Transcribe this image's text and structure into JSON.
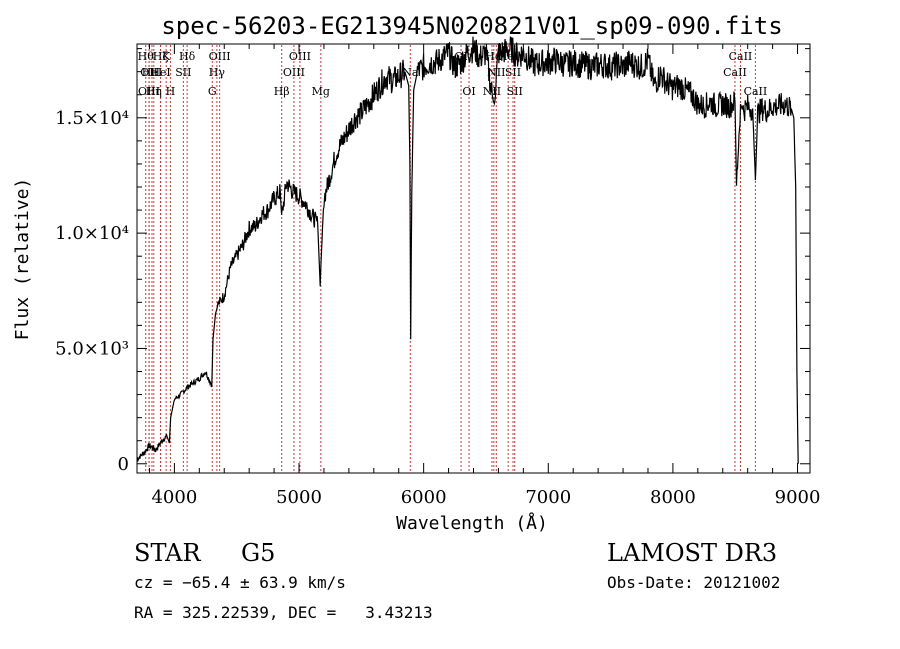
{
  "chart_data": {
    "type": "line",
    "title": "spec-56203-EG213945N020821V01_sp09-090.fits",
    "xlabel": "Wavelength (Å)",
    "ylabel": "Flux (relative)",
    "xlim": [
      3700,
      9100
    ],
    "ylim": [
      -400,
      18200
    ],
    "grid": false,
    "x_ticks": [
      {
        "value": 4000,
        "label": "4000"
      },
      {
        "value": 5000,
        "label": "5000"
      },
      {
        "value": 6000,
        "label": "6000"
      },
      {
        "value": 7000,
        "label": "7000"
      },
      {
        "value": 8000,
        "label": "8000"
      },
      {
        "value": 9000,
        "label": "9000"
      }
    ],
    "y_ticks": [
      {
        "value": 0,
        "label": "0"
      },
      {
        "value": 5000,
        "label": "5.0×10³"
      },
      {
        "value": 10000,
        "label": "1.0×10⁴"
      },
      {
        "value": 15000,
        "label": "1.5×10⁴"
      }
    ],
    "series": [
      {
        "name": "spectrum",
        "x": [
          3700,
          3760,
          3800,
          3850,
          3900,
          3940,
          3960,
          3970,
          4000,
          4050,
          4100,
          4150,
          4200,
          4250,
          4300,
          4310,
          4330,
          4350,
          4400,
          4450,
          4500,
          4550,
          4600,
          4650,
          4700,
          4750,
          4800,
          4850,
          4860,
          4900,
          4950,
          5000,
          5050,
          5100,
          5150,
          5170,
          5180,
          5200,
          5250,
          5300,
          5350,
          5400,
          5450,
          5500,
          5550,
          5600,
          5650,
          5700,
          5750,
          5800,
          5850,
          5880,
          5890,
          5896,
          5905,
          5920,
          5950,
          6000,
          6050,
          6100,
          6150,
          6200,
          6250,
          6300,
          6350,
          6400,
          6450,
          6500,
          6550,
          6563,
          6600,
          6650,
          6700,
          6750,
          6800,
          6850,
          6900,
          6950,
          7000,
          7050,
          7100,
          7150,
          7200,
          7250,
          7300,
          7350,
          7400,
          7450,
          7500,
          7550,
          7600,
          7650,
          7700,
          7750,
          7800,
          7850,
          7900,
          7950,
          8000,
          8050,
          8100,
          8150,
          8200,
          8250,
          8300,
          8350,
          8400,
          8450,
          8498,
          8510,
          8542,
          8560,
          8600,
          8640,
          8662,
          8680,
          8720,
          8760,
          8800,
          8850,
          8900,
          8950,
          8970,
          8985,
          8995,
          9005
        ],
        "y": [
          200,
          500,
          800,
          600,
          1000,
          1200,
          900,
          2000,
          2800,
          3000,
          3300,
          3500,
          3700,
          4000,
          3400,
          5400,
          6500,
          6900,
          7300,
          8500,
          9000,
          9500,
          10200,
          10300,
          10800,
          11000,
          11500,
          11800,
          10700,
          12200,
          11800,
          11600,
          11300,
          10800,
          10400,
          7700,
          9200,
          11500,
          12500,
          13500,
          14000,
          14500,
          15000,
          15200,
          15600,
          16000,
          16400,
          16800,
          16600,
          16800,
          17000,
          16400,
          13000,
          5400,
          11800,
          16200,
          17000,
          17200,
          17400,
          17400,
          17600,
          17800,
          17200,
          17400,
          17800,
          18000,
          17600,
          17800,
          16000,
          15600,
          17800,
          17900,
          18000,
          17700,
          17800,
          17500,
          17300,
          17400,
          17400,
          17500,
          17400,
          17300,
          17400,
          17300,
          17300,
          17200,
          17300,
          17300,
          17200,
          17300,
          17200,
          17400,
          17300,
          17200,
          17500,
          16400,
          16900,
          16500,
          16300,
          16400,
          16200,
          16000,
          15600,
          15500,
          15700,
          15500,
          15600,
          15500,
          15700,
          12100,
          15600,
          15300,
          15500,
          15400,
          12300,
          15200,
          15400,
          15300,
          15500,
          15500,
          15600,
          15400,
          15000,
          12000,
          4000,
          0
        ]
      }
    ],
    "lines": [
      {
        "x": 3770,
        "label": "Hθ",
        "row": 1
      },
      {
        "x": 3797,
        "label": "OII",
        "row": 2
      },
      {
        "x": 3797,
        "label": "OIII",
        "row": 3
      },
      {
        "x": 3820,
        "label": "HeI",
        "row": 2
      },
      {
        "x": 3835,
        "label": "Hη",
        "row": 3
      },
      {
        "x": 3889,
        "label": "Hζ",
        "row": 1
      },
      {
        "x": 3934,
        "label": "K",
        "row": 1
      },
      {
        "x": 3889,
        "label": "HeI",
        "row": 2
      },
      {
        "x": 3968,
        "label": "H",
        "row": 3
      },
      {
        "x": 4072,
        "label": "SII",
        "row": 2
      },
      {
        "x": 4102,
        "label": "Hδ",
        "row": 1
      },
      {
        "x": 4304,
        "label": "G",
        "row": 3
      },
      {
        "x": 4341,
        "label": "Hγ",
        "row": 2
      },
      {
        "x": 4363,
        "label": "OIII",
        "row": 1
      },
      {
        "x": 4861,
        "label": "Hβ",
        "row": 3
      },
      {
        "x": 4959,
        "label": "OIII",
        "row": 2
      },
      {
        "x": 5007,
        "label": "OIII",
        "row": 1
      },
      {
        "x": 5175,
        "label": "Mg",
        "row": 3
      },
      {
        "x": 5893,
        "label": "Na",
        "row": 2
      },
      {
        "x": 6300,
        "label": "OI",
        "row": 1
      },
      {
        "x": 6364,
        "label": "OI",
        "row": 3
      },
      {
        "x": 6548,
        "label": "NII",
        "row": 3
      },
      {
        "x": 6563,
        "label": "Hα",
        "row": 1
      },
      {
        "x": 6583,
        "label": "NII",
        "row": 2
      },
      {
        "x": 6678,
        "label": "HeI",
        "row": 1
      },
      {
        "x": 6717,
        "label": "SII",
        "row": 2
      },
      {
        "x": 6731,
        "label": "SII",
        "row": 3
      },
      {
        "x": 8498,
        "label": "CaII",
        "row": 2
      },
      {
        "x": 8542,
        "label": "CaII",
        "row": 1
      },
      {
        "x": 8662,
        "label": "CaII",
        "row": 3
      }
    ]
  },
  "info": {
    "object_class": "STAR",
    "subclass": "G5",
    "survey": "LAMOST DR3",
    "cz": "cz = −65.4 ± 63.9 km/s",
    "obs_date": "Obs-Date: 20121002",
    "coords": "RA = 325.22539, DEC =   3.43213"
  }
}
